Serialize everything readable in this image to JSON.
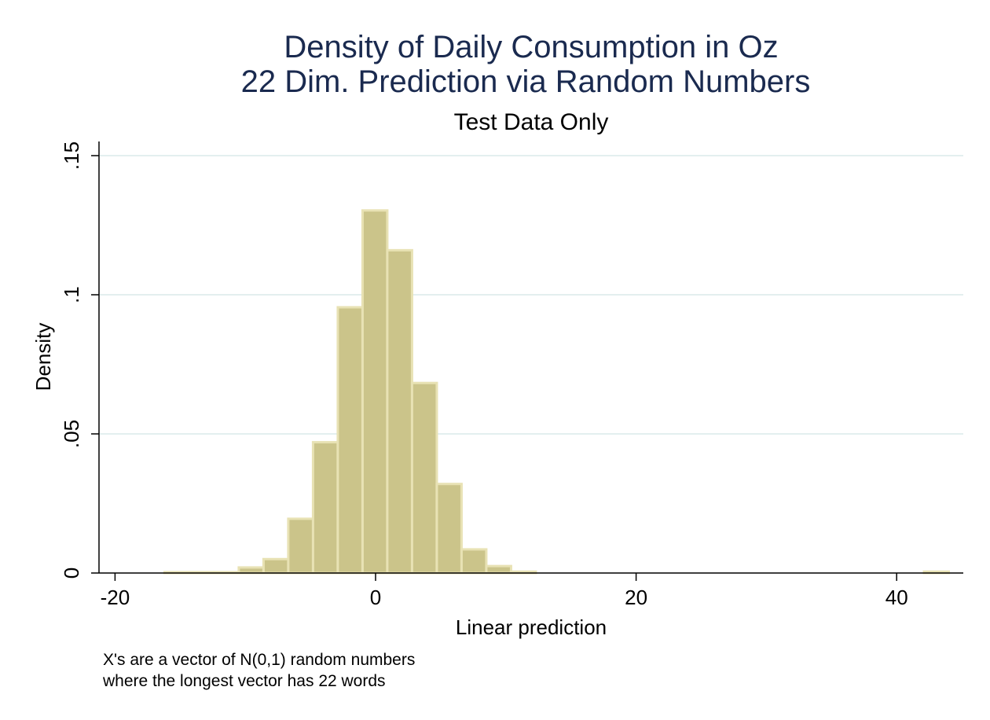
{
  "chart_data": {
    "type": "bar",
    "title": [
      "Density of Daily Consumption in Oz",
      "22 Dim. Prediction via Random Numbers"
    ],
    "subtitle": "Test Data Only",
    "xlabel": "Linear prediction",
    "ylabel": "Density",
    "xlim": [
      -21,
      45
    ],
    "ylim": [
      0,
      0.15
    ],
    "xticks": [
      -20,
      0,
      20,
      40
    ],
    "xtick_labels": [
      "-20",
      "0",
      "20",
      "40"
    ],
    "yticks": [
      0,
      0.05,
      0.1,
      0.15
    ],
    "ytick_labels": [
      "0",
      ".05",
      ".1",
      ".15"
    ],
    "grid": true,
    "bin_width": 1.9,
    "bins": [
      {
        "x0": -16.2,
        "value": 0.0003
      },
      {
        "x0": -14.3,
        "value": 0.0003
      },
      {
        "x0": -12.4,
        "value": 0.0003
      },
      {
        "x0": -10.5,
        "value": 0.002
      },
      {
        "x0": -8.6,
        "value": 0.005
      },
      {
        "x0": -6.7,
        "value": 0.0195
      },
      {
        "x0": -4.8,
        "value": 0.047
      },
      {
        "x0": -2.9,
        "value": 0.0955
      },
      {
        "x0": -1.0,
        "value": 0.1303
      },
      {
        "x0": 0.9,
        "value": 0.116
      },
      {
        "x0": 2.8,
        "value": 0.0683
      },
      {
        "x0": 4.7,
        "value": 0.032
      },
      {
        "x0": 6.6,
        "value": 0.0085
      },
      {
        "x0": 8.5,
        "value": 0.0025
      },
      {
        "x0": 10.4,
        "value": 0.0005
      },
      {
        "x0": 42.1,
        "value": 0.0005
      }
    ],
    "colors": {
      "bar_fill": "#cbc48a",
      "bar_edge": "#e8e2b4",
      "grid": "#e3efef",
      "title": "#1a2a4f"
    },
    "note": [
      "X's are a vector of N(0,1) random numbers",
      "where the longest vector has 22 words"
    ]
  }
}
